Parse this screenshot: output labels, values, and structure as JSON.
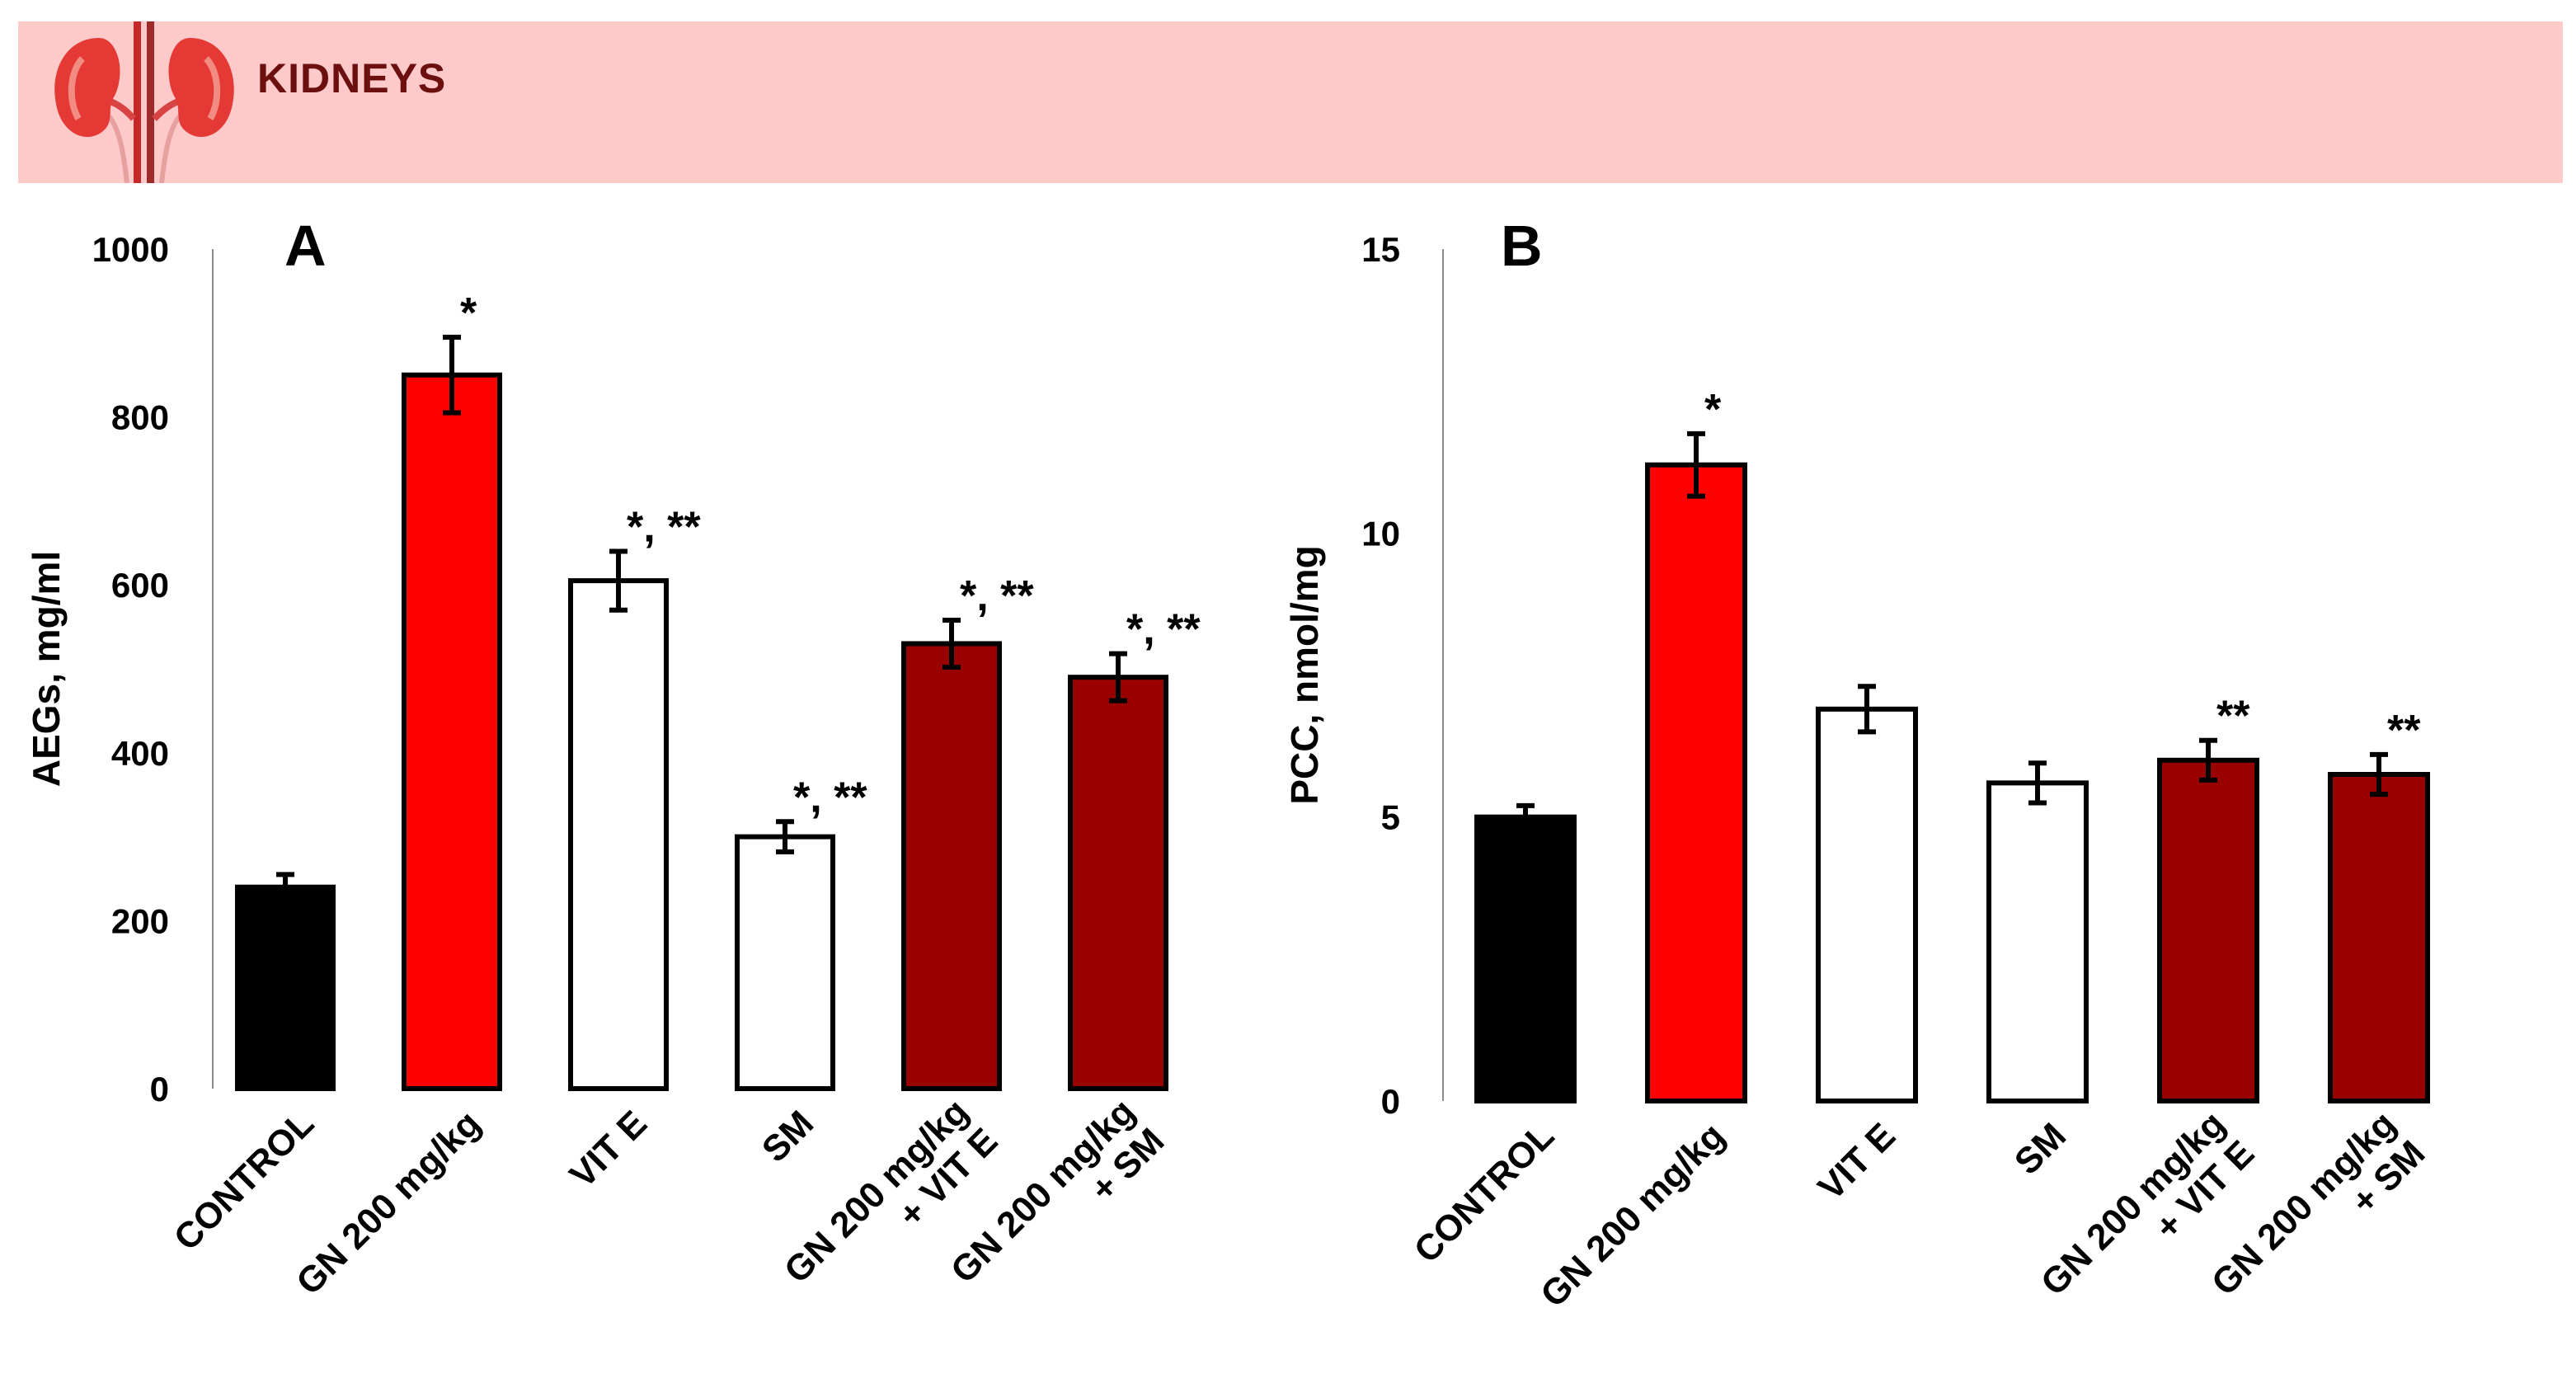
{
  "header": {
    "title": "KIDNEYS",
    "icon": "kidneys-icon",
    "background_color": "#fdc9c9"
  },
  "colors": {
    "control": "#000000",
    "gn": "#ff0000",
    "plain": "#ffffff",
    "combo": "#990000"
  },
  "chart_data": [
    {
      "type": "bar",
      "panel_label": "A",
      "ylabel": "AEGs, mg/ml",
      "ylim": [
        0,
        1000
      ],
      "yticks": [
        "0",
        "200",
        "400",
        "600",
        "800",
        "1000"
      ],
      "categories": [
        [
          "CONTROL"
        ],
        [
          "GN 200 mg/kg"
        ],
        [
          "VIT E"
        ],
        [
          "SM"
        ],
        [
          "GN 200 mg/kg",
          "+ VIT E"
        ],
        [
          "GN 200 mg/kg",
          "+ SM"
        ]
      ],
      "values": [
        240,
        850,
        605,
        300,
        530,
        490
      ],
      "errors": [
        15,
        45,
        35,
        18,
        28,
        28
      ],
      "bar_colors": [
        "#000000",
        "#ff0000",
        "#ffffff",
        "#ffffff",
        "#990000",
        "#990000"
      ],
      "annotations": [
        "",
        "*",
        "*, **",
        "*, **",
        "*, **",
        "*, **"
      ]
    },
    {
      "type": "bar",
      "panel_label": "B",
      "ylabel": "PCC, nmol/mg",
      "ylim": [
        0,
        15
      ],
      "yticks": [
        "0",
        "5",
        "10",
        "15"
      ],
      "categories": [
        [
          "CONTROL"
        ],
        [
          "GN 200 mg/kg"
        ],
        [
          "VIT E"
        ],
        [
          "SM"
        ],
        [
          "GN 200 mg/kg",
          "+ VIT E"
        ],
        [
          "GN 200 mg/kg",
          "+ SM"
        ]
      ],
      "values": [
        5.0,
        11.2,
        6.9,
        5.6,
        6.0,
        5.75
      ],
      "errors": [
        0.2,
        0.55,
        0.4,
        0.35,
        0.35,
        0.35
      ],
      "bar_colors": [
        "#000000",
        "#ff0000",
        "#ffffff",
        "#ffffff",
        "#990000",
        "#990000"
      ],
      "annotations": [
        "",
        "*",
        "",
        "",
        "**",
        "**"
      ]
    }
  ]
}
